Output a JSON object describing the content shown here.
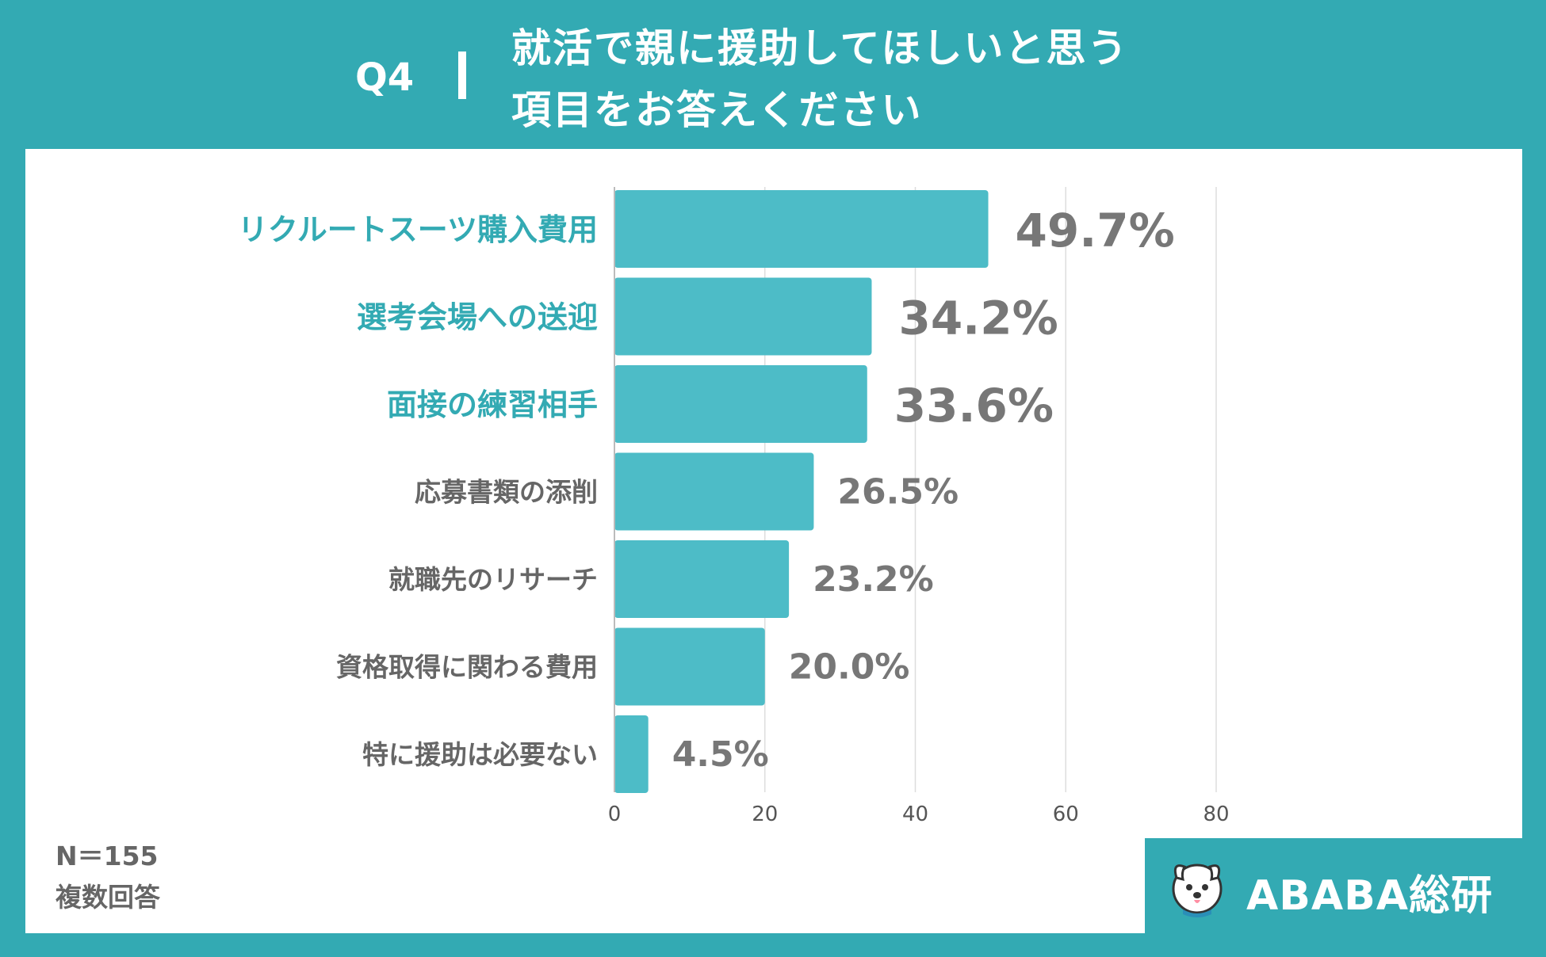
{
  "header": {
    "question_label": "Q4",
    "title_line1": "就活で親に援助してほしいと思う",
    "title_line2": "項目をお答えください"
  },
  "note": {
    "sample_size": "N＝155",
    "answer_type": "複数回答"
  },
  "brand": {
    "name": "ABABA総研",
    "logo_icon": "dog-mascot-icon"
  },
  "colors": {
    "background": "#33aab3",
    "bar": "#4dbcc7",
    "highlight_label": "#33aab3",
    "normal_label": "#666666",
    "value_text": "#777777",
    "grid": "#dddddd"
  },
  "chart_data": {
    "type": "bar",
    "orientation": "horizontal",
    "categories": [
      "リクルートスーツ購入費用",
      "選考会場への送迎",
      "面接の練習相手",
      "応募書類の添削",
      "就職先のリサーチ",
      "資格取得に関わる費用",
      "特に援助は必要ない"
    ],
    "values": [
      49.7,
      34.2,
      33.6,
      26.5,
      23.2,
      20.0,
      4.5
    ],
    "value_labels": [
      "49.7%",
      "34.2%",
      "33.6%",
      "26.5%",
      "23.2%",
      "20.0%",
      "4.5%"
    ],
    "highlighted": [
      true,
      true,
      true,
      false,
      false,
      false,
      false
    ],
    "x_ticks": [
      0,
      20,
      40,
      60,
      80
    ],
    "xlim": [
      0,
      80
    ],
    "grid": "vertical",
    "title": "",
    "xlabel": "",
    "ylabel": ""
  }
}
